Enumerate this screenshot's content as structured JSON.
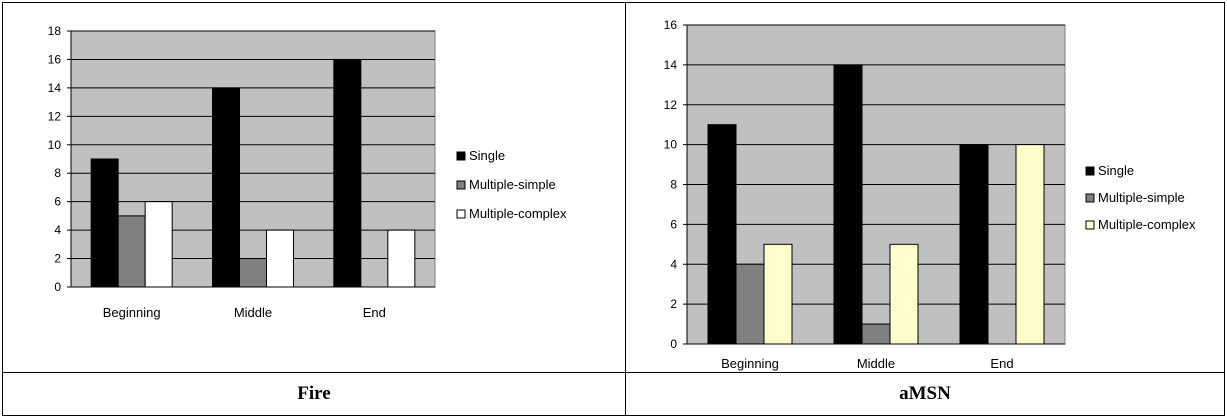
{
  "colors": {
    "plot_bg": "#c0c0c0",
    "grid": "#000000",
    "single": "#000000",
    "multiple_simple": "#808080",
    "multiple_complex_fire": "#ffffff",
    "multiple_complex_amsn": "#ffffcc"
  },
  "captions": [
    "Fire",
    "aMSN"
  ],
  "chart_data": [
    {
      "type": "bar",
      "title": "",
      "xlabel": "",
      "ylabel": "",
      "categories": [
        "Beginning",
        "Middle",
        "End"
      ],
      "series": [
        {
          "name": "Single",
          "values": [
            9,
            14,
            16
          ]
        },
        {
          "name": "Multiple-simple",
          "values": [
            5,
            2,
            0
          ]
        },
        {
          "name": "Multiple-complex",
          "values": [
            6,
            4,
            4
          ]
        }
      ],
      "ylim": [
        0,
        18
      ],
      "yticks": [
        0,
        2,
        4,
        6,
        8,
        10,
        12,
        14,
        16,
        18
      ],
      "grid": true,
      "legend": "right"
    },
    {
      "type": "bar",
      "title": "",
      "xlabel": "",
      "ylabel": "",
      "categories": [
        "Beginning",
        "Middle",
        "End"
      ],
      "series": [
        {
          "name": "Single",
          "values": [
            11,
            14,
            10
          ]
        },
        {
          "name": "Multiple-simple",
          "values": [
            4,
            1,
            0
          ]
        },
        {
          "name": "Multiple-complex",
          "values": [
            5,
            5,
            10
          ]
        }
      ],
      "ylim": [
        0,
        16
      ],
      "yticks": [
        0,
        2,
        4,
        6,
        8,
        10,
        12,
        14,
        16
      ],
      "grid": true,
      "legend": "right"
    }
  ]
}
